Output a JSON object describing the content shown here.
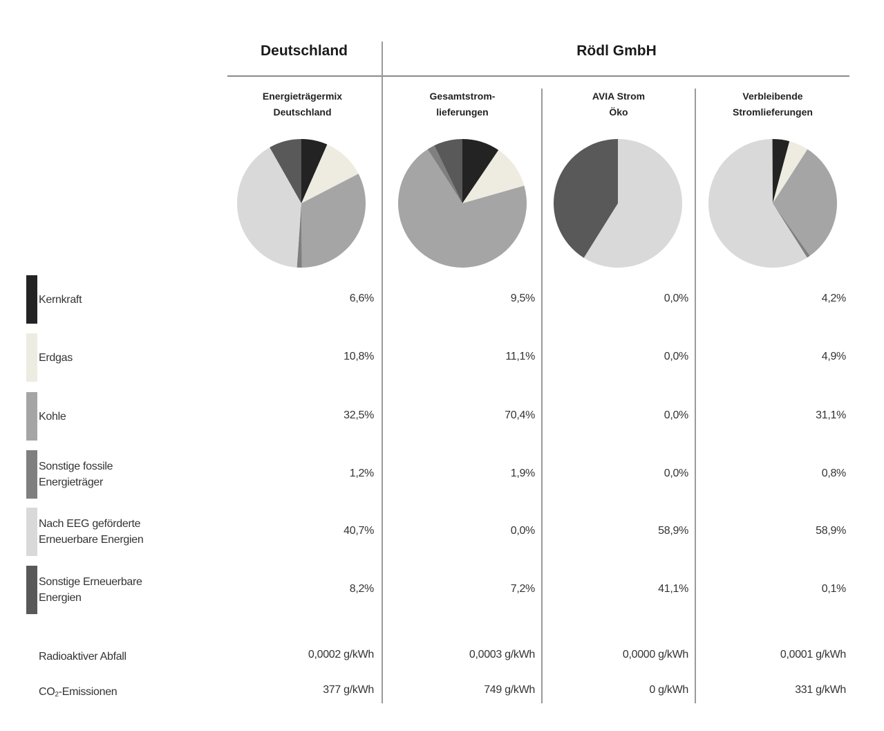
{
  "header": {
    "group_left": "Deutschland",
    "group_right": "Rödl GmbH"
  },
  "columns": [
    {
      "title_line1": "Energieträgermix",
      "title_line2": "Deutschland"
    },
    {
      "title_line1": "Gesamtstrom-",
      "title_line2": "lieferungen"
    },
    {
      "title_line1": "AVIA Strom",
      "title_line2": "Öko"
    },
    {
      "title_line1": "Verbleibende",
      "title_line2": "Stromlieferungen"
    }
  ],
  "legend": [
    {
      "label_line1": "Kernkraft",
      "label_line2": "",
      "color": "#232323"
    },
    {
      "label_line1": "Erdgas",
      "label_line2": "",
      "color": "#eeece0"
    },
    {
      "label_line1": "Kohle",
      "label_line2": "",
      "color": "#a5a5a5"
    },
    {
      "label_line1": "Sonstige fossile",
      "label_line2": "Energieträger",
      "color": "#7f7f7f"
    },
    {
      "label_line1": "Nach EEG geförderte",
      "label_line2": "Erneuerbare Energien",
      "color": "#d9d9d9"
    },
    {
      "label_line1": "Sonstige Erneuerbare",
      "label_line2": "Energien",
      "color": "#595959"
    }
  ],
  "values": [
    [
      "6,6%",
      "9,5%",
      "0,0%",
      "4,2%"
    ],
    [
      "10,8%",
      "11,1%",
      "0,0%",
      "4,9%"
    ],
    [
      "32,5%",
      "70,4%",
      "0,0%",
      "31,1%"
    ],
    [
      "1,2%",
      "1,9%",
      "0,0%",
      "0,8%"
    ],
    [
      "40,7%",
      "0,0%",
      "58,9%",
      "58,9%"
    ],
    [
      "8,2%",
      "7,2%",
      "41,1%",
      "0,1%"
    ]
  ],
  "extra_rows": {
    "radioactive": {
      "label": "Radioaktiver Abfall",
      "values": [
        "0,0002 g/kWh",
        "0,0003 g/kWh",
        "0,0000 g/kWh",
        "0,0001 g/kWh"
      ]
    },
    "co2": {
      "label_prefix": "CO",
      "label_sub": "2",
      "label_suffix": "-Emissionen",
      "values": [
        "377 g/kWh",
        "749 g/kWh",
        "0 g/kWh",
        "331 g/kWh"
      ]
    }
  },
  "chart_data": {
    "type": "pie",
    "title": "Energieträgermix – Deutschland vs. Rödl GmbH",
    "categories": [
      "Kernkraft",
      "Erdgas",
      "Kohle",
      "Sonstige fossile Energieträger",
      "Nach EEG geförderte Erneuerbare Energien",
      "Sonstige Erneuerbare Energien"
    ],
    "colors": [
      "#232323",
      "#eeece0",
      "#a5a5a5",
      "#7f7f7f",
      "#d9d9d9",
      "#595959"
    ],
    "series": [
      {
        "name": "Energieträgermix Deutschland",
        "group": "Deutschland",
        "values": [
          6.6,
          10.8,
          32.5,
          1.2,
          40.7,
          8.2
        ],
        "radioaktiver_abfall_g_per_kwh": 0.0002,
        "co2_g_per_kwh": 377
      },
      {
        "name": "Gesamtstromlieferungen",
        "group": "Rödl GmbH",
        "values": [
          9.5,
          11.1,
          70.4,
          1.9,
          0.0,
          7.2
        ],
        "radioaktiver_abfall_g_per_kwh": 0.0003,
        "co2_g_per_kwh": 749
      },
      {
        "name": "AVIA Strom Öko",
        "group": "Rödl GmbH",
        "values": [
          0.0,
          0.0,
          0.0,
          0.0,
          58.9,
          41.1
        ],
        "radioaktiver_abfall_g_per_kwh": 0.0,
        "co2_g_per_kwh": 0
      },
      {
        "name": "Verbleibende Stromlieferungen",
        "group": "Rödl GmbH",
        "values": [
          4.2,
          4.9,
          31.1,
          0.8,
          58.9,
          0.1
        ],
        "radioaktiver_abfall_g_per_kwh": 0.0001,
        "co2_g_per_kwh": 331
      }
    ],
    "legend_position": "left",
    "start_angle": "12 o'clock, clockwise"
  }
}
